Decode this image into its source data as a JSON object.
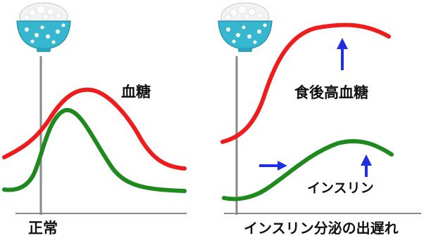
{
  "panels": [
    {
      "id": "normal",
      "caption": "正常",
      "labels": [
        {
          "text": "血糖"
        }
      ],
      "icons": [
        "rice-bowl-icon"
      ]
    },
    {
      "id": "delayed",
      "caption": "インスリン分泌の出遅れ",
      "labels": [
        {
          "text": "食後高血糖"
        },
        {
          "text": "インスリン"
        }
      ],
      "icons": [
        "rice-bowl-icon",
        "up-arrow-icon",
        "up-arrow-icon",
        "right-arrow-icon"
      ]
    }
  ],
  "colors": {
    "blood_sugar": "#ee1c1c",
    "insulin": "#1e8a1e",
    "axis": "#888888",
    "arrow": "#1f2fe0",
    "bowl": "#37b7cf",
    "bowl_dots": "#ffffff",
    "rice": "#f4f4f4"
  }
}
